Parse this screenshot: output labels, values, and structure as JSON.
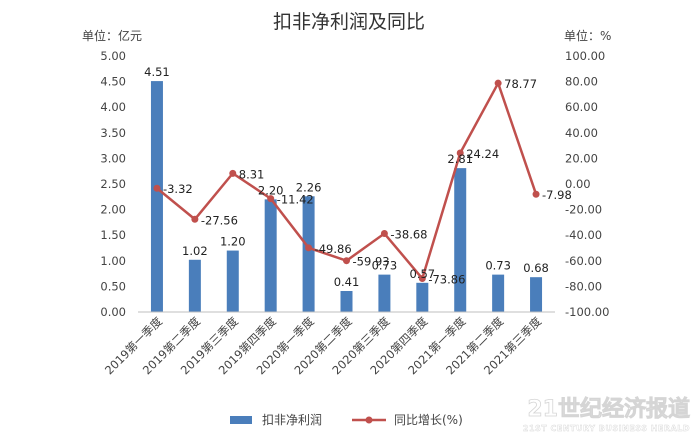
{
  "chart_data": {
    "type": "bar",
    "title": "扣非净利润及同比",
    "left_unit": "单位：亿元",
    "right_unit": "单位：%",
    "categories": [
      "2019第一季度",
      "2019第二季度",
      "2019第三季度",
      "2019第四季度",
      "2020第一季度",
      "2020第二季度",
      "2020第三季度",
      "2020第四季度",
      "2021第一季度",
      "2021第二季度",
      "2021第三季度"
    ],
    "series": [
      {
        "name": "扣非净利润",
        "type": "bar",
        "axis": "left",
        "color": "#4a7ebb",
        "values": [
          4.51,
          1.02,
          1.2,
          2.2,
          2.26,
          0.41,
          0.73,
          0.57,
          2.81,
          0.73,
          0.68
        ],
        "labels": [
          "4.51",
          "1.02",
          "1.20",
          "2.20",
          "2.26",
          "0.41",
          "0.73",
          "0.57",
          "2.81",
          "0.73",
          "0.68"
        ]
      },
      {
        "name": "同比增长(%)",
        "type": "line",
        "axis": "right",
        "color": "#c0504d",
        "values": [
          -3.32,
          -27.56,
          8.31,
          -11.42,
          -49.86,
          -59.93,
          -38.68,
          -73.86,
          24.24,
          78.77,
          -7.98
        ],
        "labels": [
          "-3.32",
          "-27.56",
          "8.31",
          "-11.42",
          "-49.86",
          "-59.93",
          "-38.68",
          "-73.86",
          "24.24",
          "78.77",
          "-7.98"
        ]
      }
    ],
    "y_left": {
      "min": 0,
      "max": 5,
      "step": 0.5,
      "tick_labels": [
        "0.00",
        "0.50",
        "1.00",
        "1.50",
        "2.00",
        "2.50",
        "3.00",
        "3.50",
        "4.00",
        "4.50",
        "5.00"
      ]
    },
    "y_right": {
      "min": -100,
      "max": 100,
      "step": 20,
      "tick_labels": [
        "-100.00",
        "-80.00",
        "-60.00",
        "-40.00",
        "-20.00",
        "0.00",
        "20.00",
        "40.00",
        "60.00",
        "80.00",
        "100.00"
      ]
    },
    "grid": false,
    "legend_position": "bottom"
  },
  "watermark": {
    "main": "21世纪经济报道",
    "sub": "21ST CENTURY BUSINESS HERALD"
  }
}
